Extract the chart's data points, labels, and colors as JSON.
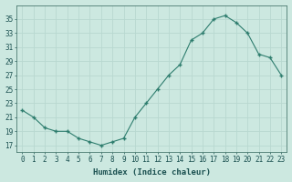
{
  "x": [
    0,
    1,
    2,
    3,
    4,
    5,
    6,
    7,
    8,
    9,
    10,
    11,
    12,
    13,
    14,
    15,
    16,
    17,
    18,
    19,
    20,
    21,
    22,
    23
  ],
  "y": [
    22,
    21,
    19.5,
    19,
    19,
    18,
    17.5,
    17,
    17.5,
    18,
    21,
    23,
    25,
    27,
    28.5,
    32,
    33,
    35,
    35.5,
    34.5,
    33,
    30,
    29.5,
    27
  ],
  "xlabel": "Humidex (Indice chaleur)",
  "ylabel": "",
  "xlim": [
    -0.5,
    23.5
  ],
  "ylim": [
    16,
    37
  ],
  "yticks": [
    17,
    19,
    21,
    23,
    25,
    27,
    29,
    31,
    33,
    35
  ],
  "xtick_labels": [
    "0",
    "1",
    "2",
    "3",
    "4",
    "5",
    "6",
    "7",
    "8",
    "9",
    "10",
    "11",
    "12",
    "13",
    "14",
    "15",
    "16",
    "17",
    "18",
    "19",
    "20",
    "21",
    "22",
    "23"
  ],
  "line_color": "#2e7d6e",
  "marker_color": "#2e7d6e",
  "bg_color": "#cce8e0",
  "grid_color": "#b8d8d0",
  "label_fontsize": 6.5,
  "tick_fontsize": 5.5
}
